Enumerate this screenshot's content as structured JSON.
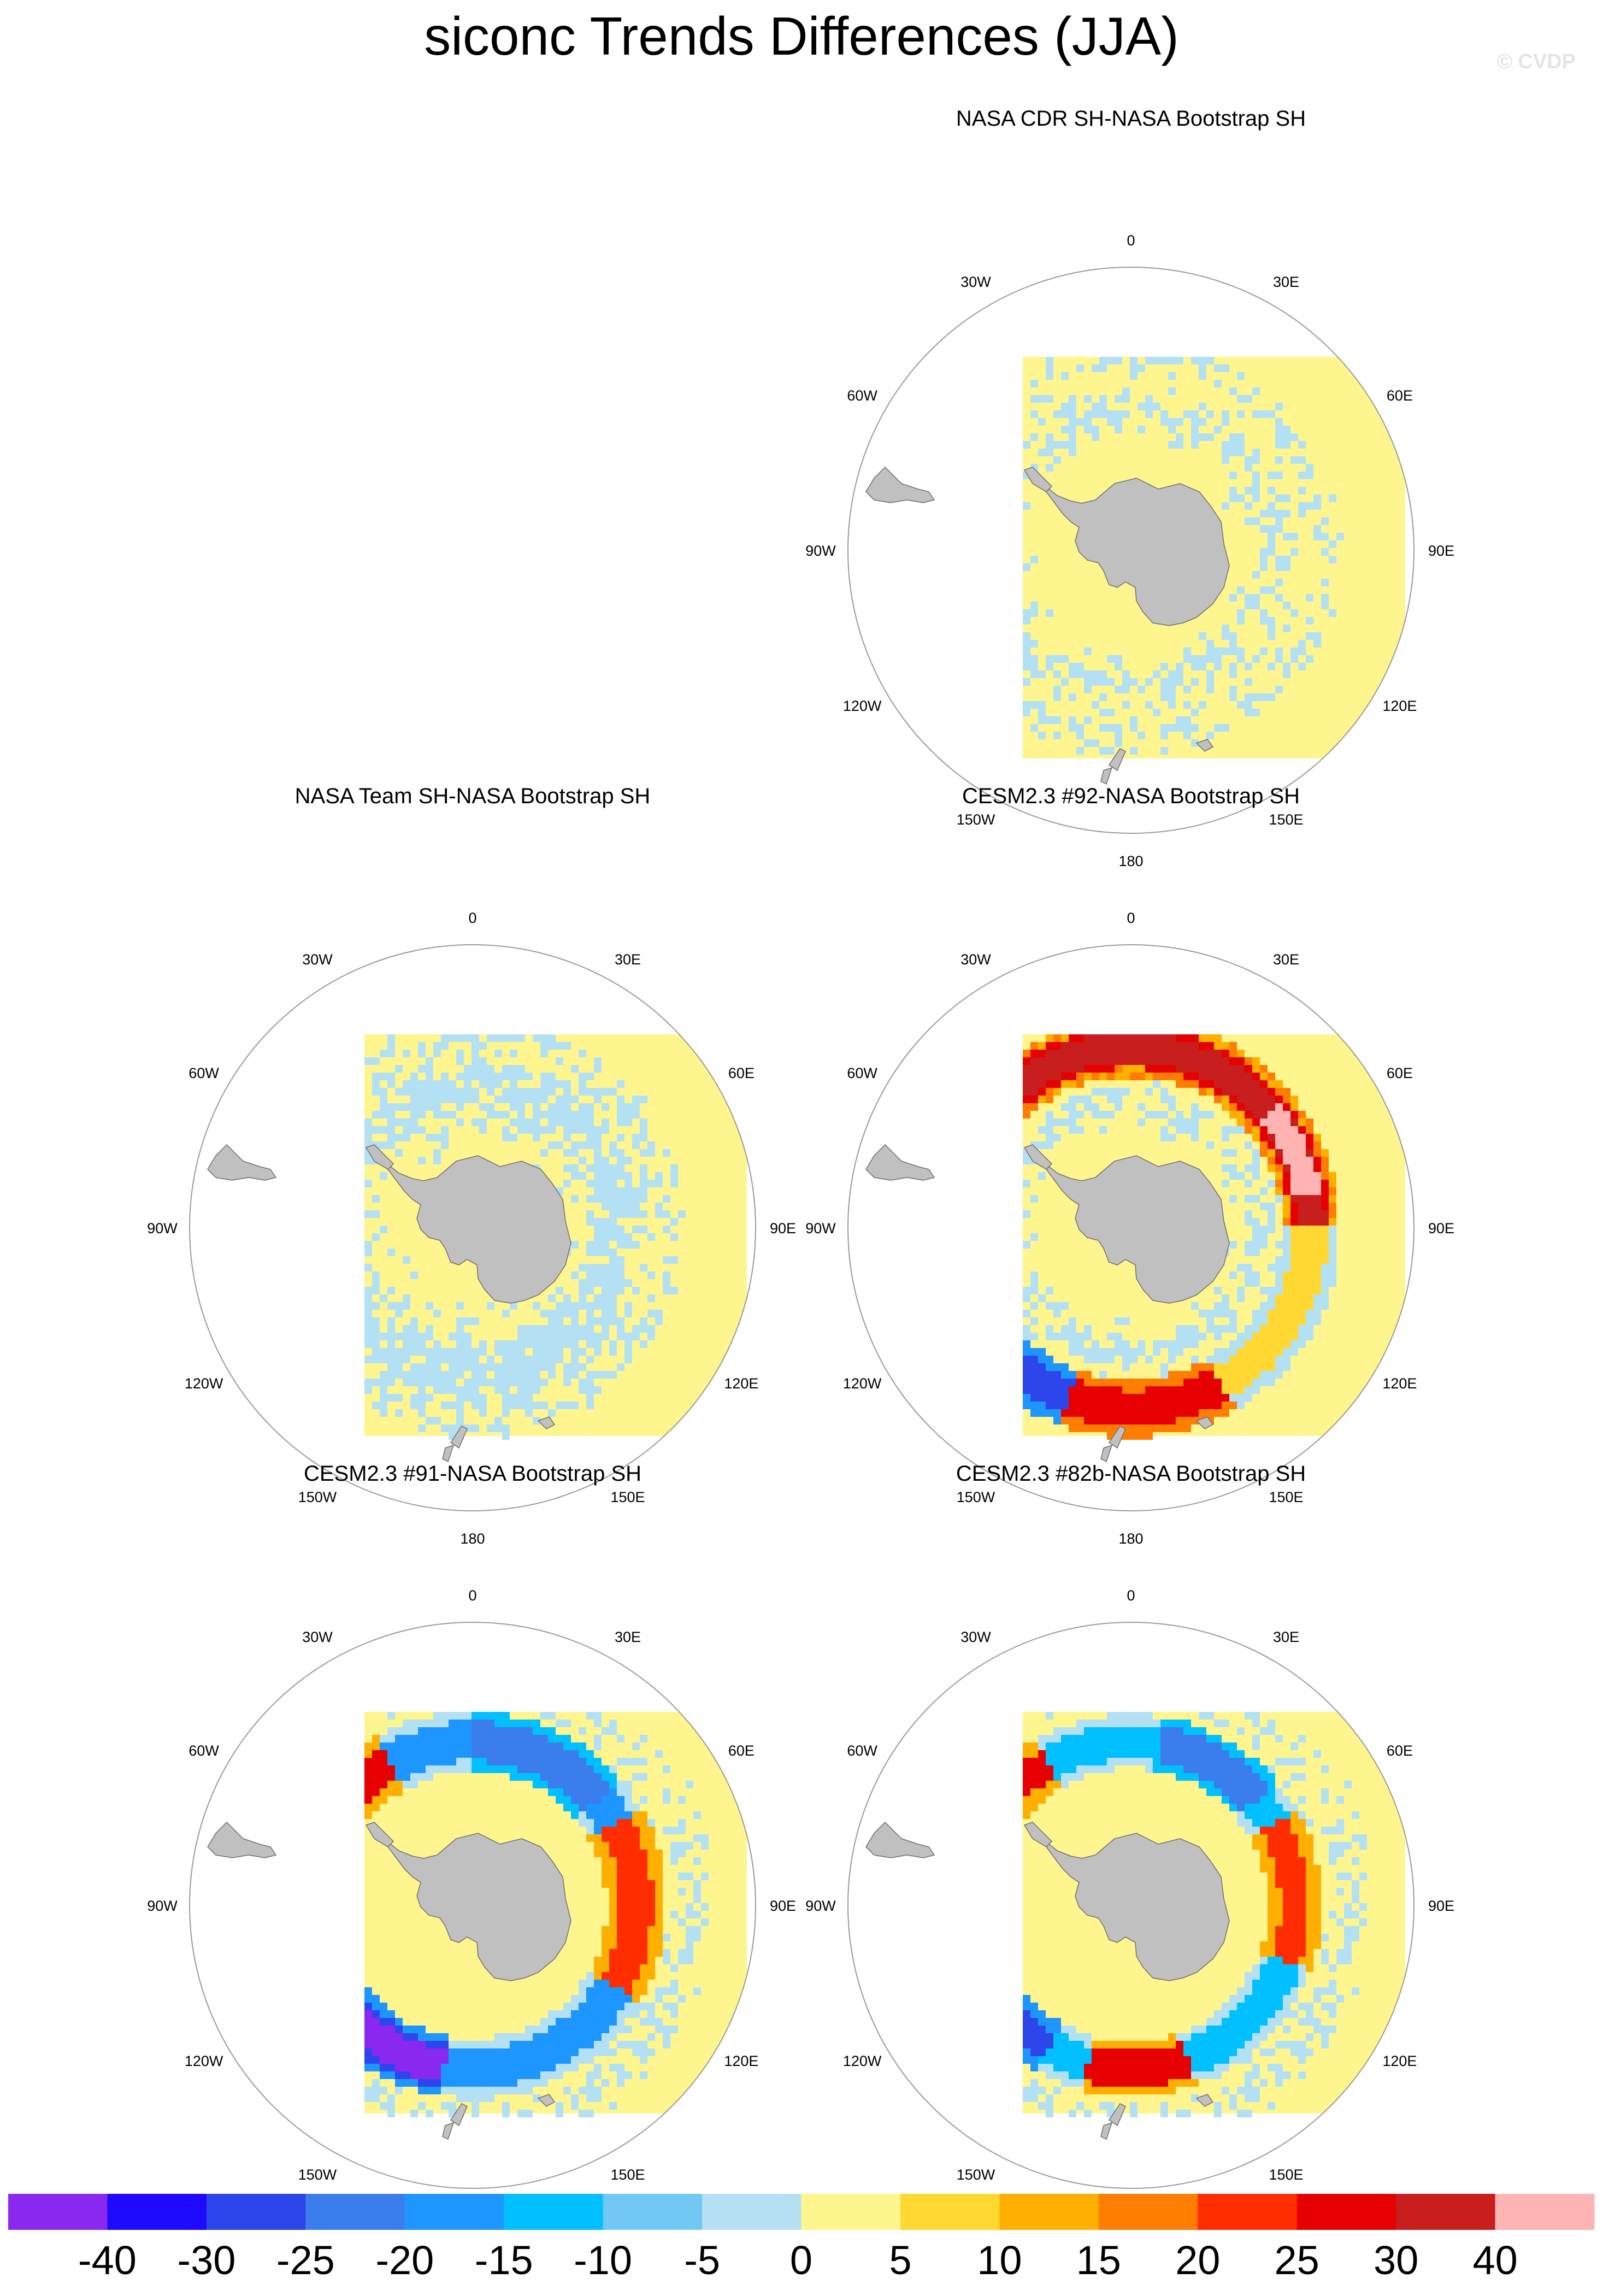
{
  "title": "siconc Trends Differences (JJA)",
  "watermark": "© CVDP",
  "graticule_labels": [
    "0",
    "30E",
    "60E",
    "90E",
    "120E",
    "150E",
    "180",
    "150W",
    "120W",
    "90W",
    "60W",
    "30W"
  ],
  "land_color": "#c0c0c0",
  "panels": [
    {
      "title": "NASA CDR SH-NASA Bootstrap SH",
      "pattern": "small"
    },
    {
      "title": "NASA Team SH-NASA Bootstrap SH",
      "pattern": "team"
    },
    {
      "title": "CESM2.3 #92-NASA Bootstrap SH",
      "pattern": "warm"
    },
    {
      "title": "CESM2.3 #91-NASA Bootstrap SH",
      "pattern": "mixed91"
    },
    {
      "title": "CESM2.3 #82b-NASA Bootstrap SH",
      "pattern": "mixed82"
    }
  ],
  "colorbar": {
    "colors": [
      "#8a28f0",
      "#1e0aff",
      "#2d46ec",
      "#3c7ded",
      "#1e96ff",
      "#00c0ff",
      "#72c8f5",
      "#b4e0f4",
      "#fff58e",
      "#ffd832",
      "#ffaf00",
      "#ff7d00",
      "#ff2d00",
      "#e60000",
      "#c81e1e",
      "#ffb4b4"
    ],
    "labels": [
      "-40",
      "-30",
      "-25",
      "-20",
      "-15",
      "-10",
      "-5",
      "0",
      "5",
      "10",
      "15",
      "20",
      "25",
      "30",
      "40"
    ]
  }
}
